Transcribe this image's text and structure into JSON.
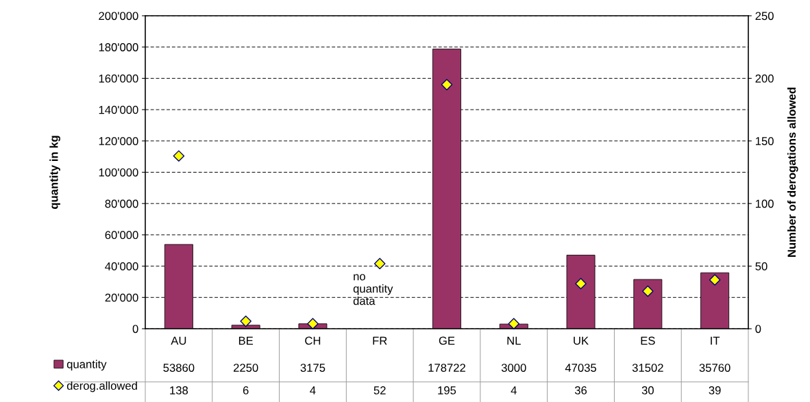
{
  "chart_data": {
    "type": "bar",
    "categories": [
      "AU",
      "BE",
      "CH",
      "FR",
      "GE",
      "NL",
      "UK",
      "ES",
      "IT"
    ],
    "ylabel": "quantity in kg",
    "y2label": "Number of derogations allowed",
    "ylim": [
      0,
      200000
    ],
    "yticks": [
      {
        "value": 0,
        "label": "0"
      },
      {
        "value": 20000,
        "label": "20'000"
      },
      {
        "value": 40000,
        "label": "40'000"
      },
      {
        "value": 60000,
        "label": "60'000"
      },
      {
        "value": 80000,
        "label": "80'000"
      },
      {
        "value": 100000,
        "label": "100'000"
      },
      {
        "value": 120000,
        "label": "120'000"
      },
      {
        "value": 140000,
        "label": "140'000"
      },
      {
        "value": 160000,
        "label": "160'000"
      },
      {
        "value": 180000,
        "label": "180'000"
      },
      {
        "value": 200000,
        "label": "200'000"
      }
    ],
    "y2lim": [
      0,
      250
    ],
    "y2ticks": [
      0,
      50,
      100,
      150,
      200,
      250
    ],
    "series": [
      {
        "name": "quantity",
        "color": "#993366",
        "values": [
          53860,
          2250,
          3175,
          null,
          178722,
          3000,
          47035,
          31502,
          35760
        ]
      },
      {
        "name": "derog.allowed",
        "type": "scatter",
        "axis": "y2",
        "color": "#ffff00",
        "marker": "diamond",
        "values": [
          138,
          6,
          4,
          52,
          195,
          4,
          36,
          30,
          39
        ]
      }
    ],
    "annotations": [
      "no\nquantity\ndata"
    ],
    "grid": "y",
    "data_labels": true,
    "legend": "bottom"
  }
}
